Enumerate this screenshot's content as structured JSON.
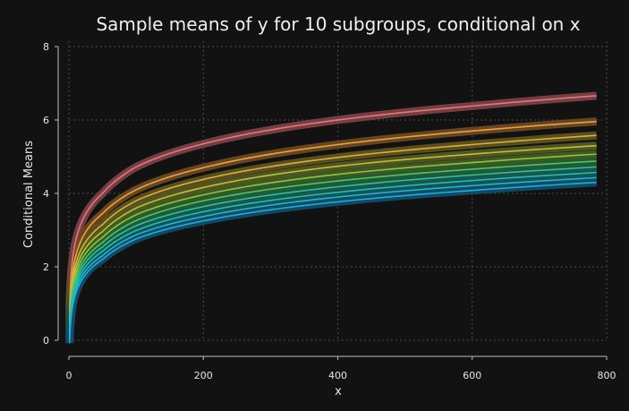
{
  "chart_data": {
    "type": "line",
    "title": "Sample means of y for 10 subgroups, conditional on x",
    "xlabel": "x",
    "ylabel": "Conditional Means",
    "xlim": [
      0,
      800
    ],
    "ylim": [
      0,
      8
    ],
    "x_ticks": [
      0,
      200,
      400,
      600,
      800
    ],
    "y_ticks": [
      0,
      2,
      4,
      6,
      8
    ],
    "grid": true,
    "legend": "none",
    "x_max_data": 785,
    "series": [
      {
        "color": "#e8757a",
        "band_color": "#7a4246",
        "values": [
          [
            1,
            0.85
          ],
          [
            50,
            4.0
          ],
          [
            100,
            4.72
          ],
          [
            200,
            5.35
          ],
          [
            400,
            6.0
          ],
          [
            600,
            6.38
          ],
          [
            785,
            6.66
          ]
        ]
      },
      {
        "color": "#f0a040",
        "band_color": "#6b4a22",
        "values": [
          [
            1,
            0.62
          ],
          [
            50,
            3.45
          ],
          [
            100,
            4.1
          ],
          [
            200,
            4.7
          ],
          [
            400,
            5.33
          ],
          [
            600,
            5.7
          ],
          [
            785,
            5.96
          ]
        ]
      },
      {
        "color": "#d6b23a",
        "band_color": "#5f5220",
        "values": [
          [
            1,
            0.52
          ],
          [
            50,
            3.15
          ],
          [
            100,
            3.8
          ],
          [
            200,
            4.38
          ],
          [
            400,
            4.98
          ],
          [
            600,
            5.33
          ],
          [
            785,
            5.58
          ]
        ]
      },
      {
        "color": "#b9c23a",
        "band_color": "#545a22",
        "values": [
          [
            1,
            0.42
          ],
          [
            50,
            2.96
          ],
          [
            100,
            3.6
          ],
          [
            200,
            4.16
          ],
          [
            400,
            4.74
          ],
          [
            600,
            5.07
          ],
          [
            785,
            5.3
          ]
        ]
      },
      {
        "color": "#8cc63e",
        "band_color": "#425c24",
        "values": [
          [
            1,
            0.34
          ],
          [
            50,
            2.8
          ],
          [
            100,
            3.42
          ],
          [
            200,
            3.96
          ],
          [
            400,
            4.52
          ],
          [
            600,
            4.84
          ],
          [
            785,
            5.07
          ]
        ]
      },
      {
        "color": "#4fc65a",
        "band_color": "#2a5c30",
        "values": [
          [
            1,
            0.26
          ],
          [
            50,
            2.66
          ],
          [
            100,
            3.26
          ],
          [
            200,
            3.8
          ],
          [
            400,
            4.34
          ],
          [
            600,
            4.66
          ],
          [
            785,
            4.88
          ]
        ]
      },
      {
        "color": "#2ec48a",
        "band_color": "#1e5a44",
        "values": [
          [
            1,
            0.18
          ],
          [
            50,
            2.54
          ],
          [
            100,
            3.12
          ],
          [
            200,
            3.64
          ],
          [
            400,
            4.18
          ],
          [
            600,
            4.5
          ],
          [
            785,
            4.72
          ]
        ]
      },
      {
        "color": "#22bfae",
        "band_color": "#175652",
        "values": [
          [
            1,
            0.1
          ],
          [
            50,
            2.42
          ],
          [
            100,
            2.99
          ],
          [
            200,
            3.5
          ],
          [
            400,
            4.03
          ],
          [
            600,
            4.35
          ],
          [
            785,
            4.57
          ]
        ]
      },
      {
        "color": "#1fb8c8",
        "band_color": "#16525c",
        "values": [
          [
            1,
            0.02
          ],
          [
            50,
            2.3
          ],
          [
            100,
            2.87
          ],
          [
            200,
            3.37
          ],
          [
            400,
            3.9
          ],
          [
            600,
            4.21
          ],
          [
            785,
            4.43
          ]
        ]
      },
      {
        "color": "#1aaee0",
        "band_color": "#134c66",
        "values": [
          [
            1,
            -0.08
          ],
          [
            50,
            2.2
          ],
          [
            100,
            2.76
          ],
          [
            200,
            3.25
          ],
          [
            400,
            3.77
          ],
          [
            600,
            4.08
          ],
          [
            785,
            4.3
          ]
        ]
      }
    ]
  },
  "style": {
    "background": "#121212",
    "axis_color": "#bdbdbd",
    "grid_color": "#4a4a4a",
    "text_color": "#e6e6e6"
  }
}
